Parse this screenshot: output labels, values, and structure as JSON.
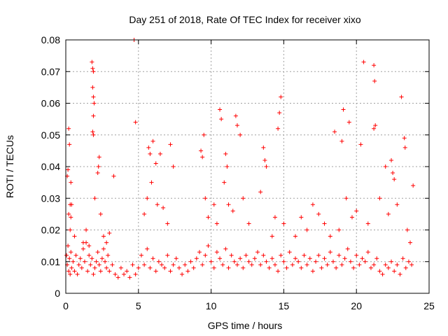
{
  "chart_data": {
    "type": "scatter",
    "title": "Day 251 of 2018, Rate Of TEC Index for receiver xixo",
    "xlabel": "GPS time / hours",
    "ylabel": "ROTI / TECUs",
    "xlim": [
      0,
      25
    ],
    "ylim": [
      0,
      0.08
    ],
    "x_ticks": [
      0,
      5,
      10,
      15,
      20,
      25
    ],
    "x_tick_labels": [
      "0",
      "5",
      "10",
      "15",
      "20",
      "25"
    ],
    "y_ticks": [
      0,
      0.01,
      0.02,
      0.03,
      0.04,
      0.05,
      0.06,
      0.07,
      0.08
    ],
    "y_tick_labels": [
      "0",
      "0.01",
      "0.02",
      "0.03",
      "0.04",
      "0.05",
      "0.06",
      "0.07",
      "0.08"
    ],
    "grid": true,
    "marker": "plus",
    "color": "#ff0000",
    "x": [
      0.05,
      0.1,
      0.15,
      0.2,
      0.25,
      0.3,
      0.35,
      0.4,
      0.5,
      0.6,
      0.7,
      0.8,
      0.9,
      1.0,
      1.1,
      1.2,
      1.3,
      1.4,
      1.5,
      1.6,
      1.7,
      1.8,
      1.9,
      2.0,
      2.1,
      2.2,
      2.3,
      2.4,
      2.5,
      2.6,
      2.7,
      2.8,
      2.9,
      3.0,
      3.2,
      3.4,
      3.6,
      3.8,
      4.0,
      4.2,
      4.4,
      4.6,
      4.8,
      5.0,
      5.2,
      5.4,
      5.6,
      5.8,
      6.0,
      6.2,
      6.4,
      6.6,
      6.8,
      7.0,
      7.2,
      7.4,
      7.6,
      7.8,
      8.0,
      8.2,
      8.4,
      8.6,
      8.8,
      9.0,
      9.2,
      9.4,
      9.6,
      9.8,
      10.0,
      10.2,
      10.4,
      10.6,
      10.8,
      11.0,
      11.2,
      11.4,
      11.6,
      11.8,
      12.0,
      12.2,
      12.4,
      12.6,
      12.8,
      13.0,
      13.2,
      13.4,
      13.6,
      13.8,
      14.0,
      14.2,
      14.4,
      14.6,
      14.8,
      15.0,
      15.2,
      15.4,
      15.6,
      15.8,
      16.0,
      16.2,
      16.4,
      16.6,
      16.8,
      17.0,
      17.2,
      17.4,
      17.6,
      17.8,
      18.0,
      18.2,
      18.4,
      18.6,
      18.8,
      19.0,
      19.2,
      19.4,
      19.6,
      19.8,
      20.0,
      20.2,
      20.4,
      20.6,
      20.8,
      21.0,
      21.2,
      21.4,
      21.6,
      21.8,
      22.0,
      22.2,
      22.4,
      22.6,
      22.8,
      23.0,
      23.2,
      23.4,
      23.6,
      23.8,
      0.1,
      0.15,
      0.2,
      0.25,
      0.3,
      0.35,
      0.3,
      0.35,
      1.8,
      1.85,
      1.9,
      1.85,
      1.9,
      1.95,
      1.9,
      1.85,
      1.9,
      2.3,
      2.25,
      2.2,
      3.3,
      4.7,
      4.8,
      5.7,
      5.8,
      6.0,
      6.2,
      6.5,
      7.2,
      7.4,
      9.3,
      9.4,
      9.5,
      10.6,
      10.7,
      11.0,
      11.1,
      11.7,
      11.8,
      12.0,
      13.6,
      13.7,
      13.8,
      14.6,
      14.8,
      14.7,
      18.5,
      19.0,
      19.1,
      19.5,
      20.3,
      20.5,
      21.2,
      21.25,
      21.3,
      21.2,
      22.0,
      22.4,
      22.5,
      22.6,
      23.1,
      23.3,
      23.35,
      23.9,
      0.2,
      0.4,
      0.6,
      1.2,
      1.4,
      1.6,
      2.0,
      2.4,
      2.6,
      2.8,
      3.0,
      5.4,
      5.6,
      5.9,
      6.3,
      6.7,
      7.0,
      9.6,
      9.8,
      10.2,
      10.4,
      10.9,
      11.2,
      11.5,
      12.2,
      12.6,
      13.4,
      14.2,
      14.4,
      15.0,
      15.8,
      16.2,
      16.6,
      17.0,
      17.4,
      17.8,
      18.2,
      18.8,
      19.3,
      19.7,
      20.0,
      20.8,
      21.6,
      22.2,
      22.8,
      23.5,
      23.7
    ],
    "y": [
      0.012,
      0.009,
      0.015,
      0.007,
      0.011,
      0.006,
      0.013,
      0.008,
      0.01,
      0.007,
      0.012,
      0.006,
      0.009,
      0.011,
      0.008,
      0.014,
      0.01,
      0.016,
      0.007,
      0.012,
      0.009,
      0.011,
      0.006,
      0.008,
      0.01,
      0.013,
      0.009,
      0.007,
      0.011,
      0.014,
      0.01,
      0.008,
      0.012,
      0.007,
      0.009,
      0.006,
      0.005,
      0.008,
      0.006,
      0.007,
      0.005,
      0.009,
      0.006,
      0.008,
      0.012,
      0.009,
      0.014,
      0.008,
      0.011,
      0.007,
      0.01,
      0.009,
      0.008,
      0.012,
      0.007,
      0.009,
      0.011,
      0.008,
      0.006,
      0.009,
      0.007,
      0.01,
      0.008,
      0.011,
      0.013,
      0.009,
      0.012,
      0.015,
      0.01,
      0.008,
      0.013,
      0.011,
      0.009,
      0.014,
      0.008,
      0.012,
      0.01,
      0.009,
      0.011,
      0.008,
      0.012,
      0.01,
      0.009,
      0.011,
      0.013,
      0.009,
      0.012,
      0.01,
      0.008,
      0.011,
      0.009,
      0.007,
      0.012,
      0.01,
      0.008,
      0.013,
      0.009,
      0.011,
      0.01,
      0.008,
      0.012,
      0.009,
      0.011,
      0.007,
      0.01,
      0.012,
      0.008,
      0.011,
      0.009,
      0.013,
      0.01,
      0.008,
      0.012,
      0.009,
      0.011,
      0.014,
      0.01,
      0.008,
      0.012,
      0.009,
      0.011,
      0.01,
      0.013,
      0.008,
      0.009,
      0.011,
      0.007,
      0.006,
      0.009,
      0.008,
      0.01,
      0.007,
      0.009,
      0.006,
      0.011,
      0.008,
      0.01,
      0.009,
      0.037,
      0.039,
      0.052,
      0.047,
      0.028,
      0.035,
      0.02,
      0.024,
      0.073,
      0.071,
      0.07,
      0.065,
      0.062,
      0.06,
      0.056,
      0.051,
      0.05,
      0.043,
      0.04,
      0.038,
      0.037,
      0.08,
      0.054,
      0.046,
      0.044,
      0.048,
      0.041,
      0.044,
      0.047,
      0.04,
      0.045,
      0.043,
      0.05,
      0.058,
      0.055,
      0.044,
      0.04,
      0.056,
      0.053,
      0.05,
      0.046,
      0.042,
      0.04,
      0.052,
      0.062,
      0.057,
      0.051,
      0.048,
      0.058,
      0.054,
      0.047,
      0.073,
      0.072,
      0.067,
      0.053,
      0.052,
      0.04,
      0.042,
      0.038,
      0.036,
      0.062,
      0.049,
      0.046,
      0.034,
      0.025,
      0.028,
      0.018,
      0.016,
      0.02,
      0.015,
      0.03,
      0.025,
      0.018,
      0.016,
      0.019,
      0.025,
      0.03,
      0.035,
      0.028,
      0.027,
      0.022,
      0.03,
      0.024,
      0.028,
      0.022,
      0.035,
      0.028,
      0.026,
      0.03,
      0.022,
      0.032,
      0.018,
      0.024,
      0.022,
      0.018,
      0.024,
      0.02,
      0.028,
      0.025,
      0.022,
      0.018,
      0.02,
      0.03,
      0.024,
      0.026,
      0.022,
      0.03,
      0.025,
      0.028,
      0.02,
      0.016
    ]
  }
}
